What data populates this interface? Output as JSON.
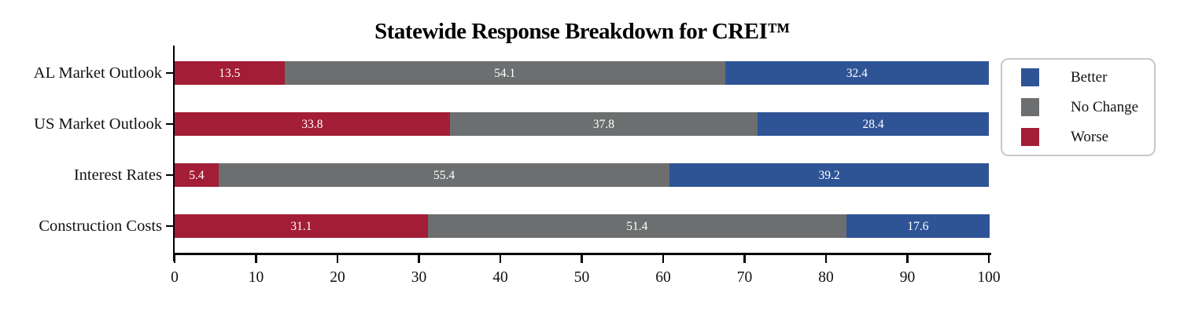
{
  "title": "Statewide Response Breakdown for CREI™",
  "legend": {
    "items": [
      {
        "label": "Better",
        "color": "#2F5496"
      },
      {
        "label": "No Change",
        "color": "#6C6E6F"
      },
      {
        "label": "Worse",
        "color": "#A31D36"
      }
    ]
  },
  "chart_data": {
    "type": "bar",
    "orientation": "horizontal",
    "stacked": true,
    "title": "Statewide Response Breakdown for CREI™",
    "categories": [
      "AL Market Outlook",
      "US Market Outlook",
      "Interest Rates",
      "Construction Costs"
    ],
    "series": [
      {
        "name": "Worse",
        "color": "#A31D36",
        "values": [
          13.5,
          33.8,
          5.4,
          31.1
        ]
      },
      {
        "name": "No Change",
        "color": "#6C6E6F",
        "values": [
          54.1,
          37.8,
          55.4,
          51.4
        ]
      },
      {
        "name": "Better",
        "color": "#2F5496",
        "values": [
          32.4,
          28.4,
          39.2,
          17.6
        ]
      }
    ],
    "xlim": [
      0,
      100
    ],
    "xticks": [
      0,
      10,
      20,
      30,
      40,
      50,
      60,
      70,
      80,
      90,
      100
    ],
    "value_labels": "inside-white",
    "legend_position": "right-outside",
    "grid": false
  },
  "colors": {
    "better": "#2F5496",
    "no_change": "#6C6E6F",
    "worse": "#A31D36",
    "axis": "#000000",
    "text": "#111111",
    "value_label": "#FFFFFF",
    "legend_border": "#C9C9C9"
  }
}
